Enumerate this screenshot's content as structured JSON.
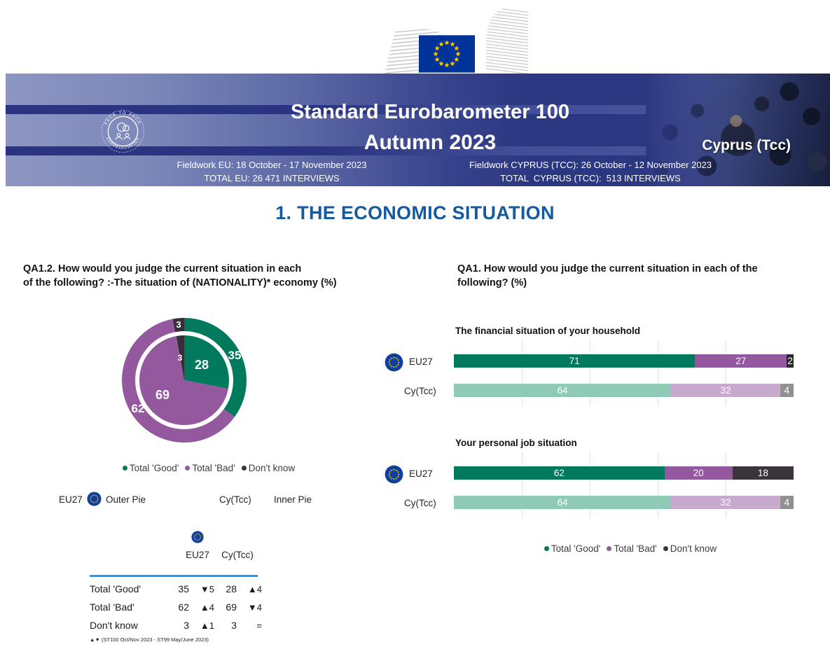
{
  "colors": {
    "banner_light": "#8d96c2",
    "banner_dark": "#2c3781",
    "stripe_dark": "#2b3480",
    "section_title_blue": "#155a9e",
    "table_rule_blue": "#1e9cf0",
    "good_strong": "#00795c",
    "bad_strong": "#94589e",
    "dk_strong": "#332e35",
    "good_light": "#8ecab5",
    "bad_light": "#c7aacd",
    "dk_light": "#919194",
    "eu_flag_blue": "#003399",
    "eu_star_yellow": "#ffcc00"
  },
  "ec_logo": {
    "line1": "European",
    "line2": "Commission"
  },
  "banner": {
    "title_line1": "Standard Eurobarometer 100",
    "title_line2": "Autumn 2023",
    "country_label": "Cyprus (Tcc)",
    "badge_text_top": "FACE TO FACE",
    "badge_text_bottom": "EUROBAROMETER",
    "fieldwork_eu_line1": "Fieldwork EU: 18 October - 17 November 2023",
    "fieldwork_eu_line2": "TOTAL EU: 26 471 INTERVIEWS",
    "fieldwork_cy_line1": "Fieldwork CYPRUS (TCC): 26 October - 12 November 2023",
    "fieldwork_cy_line2": "TOTAL  CYPRUS (TCC):  513 INTERVIEWS"
  },
  "section_title": "1. THE ECONOMIC SITUATION",
  "left_panel": {
    "question_line1": "QA1.2. How would you judge the current situation in each",
    "question_line2": "of the following? :-The situation of (NATIONALITY)* economy (%)",
    "legend": [
      {
        "label": "Total 'Good'",
        "color": "#00795c"
      },
      {
        "label": "Total 'Bad'",
        "color": "#94589e"
      },
      {
        "label": "Don't know",
        "color": "#3a353b"
      }
    ],
    "pie_key": {
      "eu_label": "EU27",
      "outer_label": "Outer Pie",
      "cy_label": "Cy(Tcc)",
      "inner_label": "Inner Pie"
    },
    "table": {
      "col_eu": "EU27",
      "col_cy": "Cy(Tcc)",
      "rows": [
        {
          "label": "Total 'Good'",
          "eu_value": "35",
          "eu_trend": "▼5",
          "cy_value": "28",
          "cy_trend": "▲4"
        },
        {
          "label": "Total 'Bad'",
          "eu_value": "62",
          "eu_trend": "▲4",
          "cy_value": "69",
          "cy_trend": "▼4"
        },
        {
          "label": "Don't know",
          "eu_value": "3",
          "eu_trend": "▲1",
          "cy_value": "3",
          "cy_trend": "="
        }
      ]
    },
    "footnote": "▲▼ (ST100 Oct/Nov 2023 - ST99 May/June 2023)"
  },
  "right_panel": {
    "question_line1": "QA1. How would you judge the current situation in each of the",
    "question_line2": "following? (%)",
    "row_label_eu": "EU27",
    "row_label_cy": "Cy(Tcc)",
    "legend": [
      {
        "label": "Total 'Good'",
        "color": "#00795c"
      },
      {
        "label": "Total 'Bad'",
        "color": "#94589e"
      },
      {
        "label": "Don't know",
        "color": "#3a353b"
      }
    ]
  },
  "chart_data": [
    {
      "type": "pie",
      "title": "QA1.2 The situation of (NATIONALITY)* economy (%)",
      "labels": [
        "Total 'Good'",
        "Total 'Bad'",
        "Don't know"
      ],
      "series": [
        {
          "name": "EU27",
          "ring": "outer",
          "values": [
            35,
            62,
            3
          ]
        },
        {
          "name": "Cy(Tcc)",
          "ring": "inner",
          "values": [
            28,
            69,
            3
          ]
        }
      ],
      "colors": [
        "#00795c",
        "#94589e",
        "#362f38"
      ],
      "start_angle_deg": 0,
      "direction": "clockwise",
      "legend_position": "bottom"
    },
    {
      "type": "bar",
      "title": "The financial situation of your household",
      "orientation": "horizontal",
      "stacked": true,
      "categories": [
        "EU27",
        "Cy(Tcc)"
      ],
      "series": [
        {
          "name": "Total 'Good'",
          "values": [
            71,
            64
          ]
        },
        {
          "name": "Total 'Bad'",
          "values": [
            27,
            32
          ]
        },
        {
          "name": "Don't know",
          "values": [
            2,
            4
          ]
        }
      ],
      "colors_eu": [
        "#00795c",
        "#94589e",
        "#29272b"
      ],
      "colors_cy": [
        "#8ecab5",
        "#c7aacd",
        "#919194"
      ],
      "xlim": [
        0,
        100
      ],
      "gridlines_pct": [
        20,
        40,
        60,
        80
      ]
    },
    {
      "type": "bar",
      "title": "Your personal job situation",
      "orientation": "horizontal",
      "stacked": true,
      "categories": [
        "EU27",
        "Cy(Tcc)"
      ],
      "series": [
        {
          "name": "Total 'Good'",
          "values": [
            62,
            64
          ]
        },
        {
          "name": "Total 'Bad'",
          "values": [
            20,
            32
          ]
        },
        {
          "name": "Don't know",
          "values": [
            18,
            4
          ]
        }
      ],
      "colors_eu": [
        "#00795c",
        "#94589e",
        "#3a353b"
      ],
      "colors_cy": [
        "#8ecab5",
        "#c7aacd",
        "#919194"
      ],
      "xlim": [
        0,
        100
      ],
      "gridlines_pct": [
        20,
        40,
        60,
        80
      ]
    }
  ]
}
